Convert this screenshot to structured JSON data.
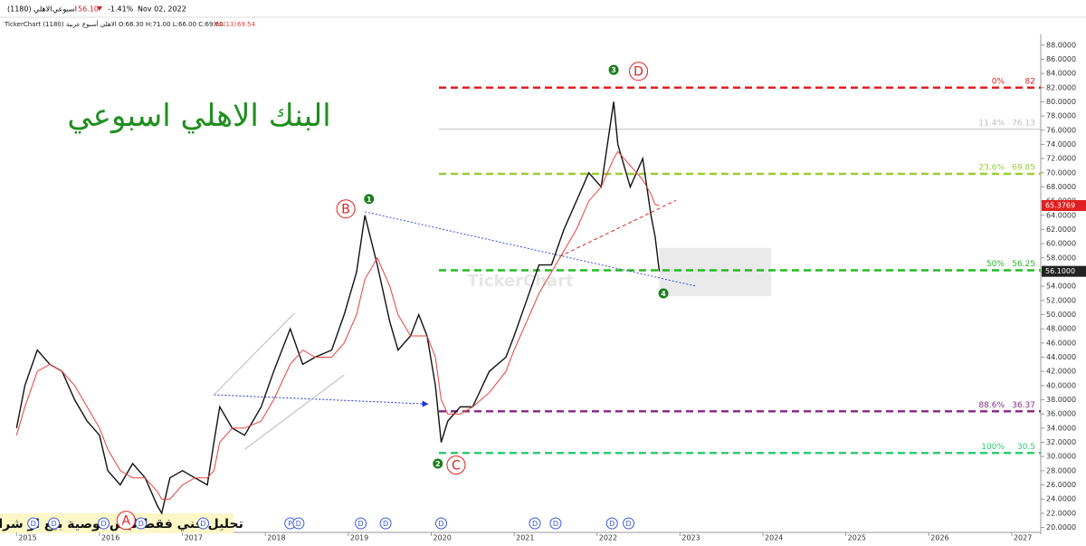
{
  "header": {
    "symbol": "الاهلي (1180)",
    "period": "اسبوعي",
    "price": "56.10",
    "change": "-1.41%",
    "date": "Nov 02, 2022",
    "ohlc": "TickerChart الاهلي أسبوع عربية (1180) O:66.30 H:71.00 L:66.00 C:69.60",
    "ma_name": "MA(13)",
    "ma_value": "69.54"
  },
  "chart_data": {
    "type": "line",
    "title": "البنك الاهلي اسبوعي",
    "footer": "تحليل فني فقط ليس توصية بيع او شراء",
    "watermark": "TickerChart",
    "x": [
      2015.0,
      2015.1,
      2015.25,
      2015.4,
      2015.55,
      2015.7,
      2015.85,
      2016.0,
      2016.1,
      2016.25,
      2016.4,
      2016.55,
      2016.7,
      2016.75,
      2016.85,
      2017.0,
      2017.15,
      2017.3,
      2017.38,
      2017.45,
      2017.6,
      2017.75,
      2017.95,
      2018.1,
      2018.3,
      2018.45,
      2018.6,
      2018.8,
      2018.95,
      2019.1,
      2019.2,
      2019.35,
      2019.5,
      2019.6,
      2019.75,
      2019.85,
      2019.95,
      2020.05,
      2020.12,
      2020.2,
      2020.35,
      2020.5,
      2020.7,
      2020.9,
      2021.0,
      2021.15,
      2021.3,
      2021.45,
      2021.6,
      2021.75,
      2021.9,
      2022.05,
      2022.2,
      2022.25,
      2022.4,
      2022.55,
      2022.65,
      2022.7,
      2022.75
    ],
    "series": [
      {
        "name": "الاهلي",
        "color": "#111111",
        "values": [
          34,
          40,
          45,
          43,
          42,
          38,
          35,
          33,
          28,
          26,
          29,
          27,
          23,
          22,
          27,
          28,
          27,
          26,
          32,
          37,
          34,
          33,
          37,
          42,
          48,
          43,
          44,
          45,
          50,
          56,
          64,
          57,
          49,
          45,
          47,
          50,
          47,
          40,
          32,
          35,
          37,
          37,
          42,
          44,
          47,
          52,
          57,
          57,
          62,
          66,
          70,
          68,
          80,
          74,
          68,
          72,
          64,
          61,
          56.1
        ]
      },
      {
        "name": "MA(13)",
        "color": "#e8413c",
        "values": [
          33,
          37,
          42,
          43,
          42,
          40,
          37,
          34,
          31,
          28,
          27,
          27,
          25,
          24,
          24,
          26,
          27,
          27,
          28,
          32,
          34,
          34,
          35,
          38,
          43,
          45,
          44,
          44,
          46,
          50,
          55,
          58,
          54,
          50,
          47,
          47,
          47,
          44,
          38,
          36,
          36,
          37,
          39,
          42,
          45,
          49,
          53,
          56,
          59,
          62,
          66,
          68,
          72,
          73,
          71,
          69,
          67,
          65.5,
          65.3769
        ]
      }
    ],
    "last_price": {
      "value": 56.1,
      "label": "56.1000"
    },
    "last_ma": 65.3769,
    "xlim": [
      2014.8,
      2027.35
    ],
    "xticks": [
      2015,
      2016,
      2017,
      2018,
      2019,
      2020,
      2021,
      2022,
      2023,
      2024,
      2025,
      2026,
      2027
    ],
    "ylim": [
      19.3,
      89.5
    ],
    "yticks": [
      {
        "value": 20,
        "label": "20.0000"
      },
      {
        "value": 22,
        "label": "22.0000"
      },
      {
        "value": 24,
        "label": "24.0000"
      },
      {
        "value": 26,
        "label": "26.0000"
      },
      {
        "value": 28,
        "label": "28.0000"
      },
      {
        "value": 30,
        "label": "30.0000"
      },
      {
        "value": 32,
        "label": "32.0000"
      },
      {
        "value": 34,
        "label": "34.0000"
      },
      {
        "value": 36,
        "label": "36.0000"
      },
      {
        "value": 38,
        "label": "38.0000"
      },
      {
        "value": 40,
        "label": "40.0000"
      },
      {
        "value": 42,
        "label": "42.0000"
      },
      {
        "value": 44,
        "label": "44.0000"
      },
      {
        "value": 46,
        "label": "46.0000"
      },
      {
        "value": 48,
        "label": "48.0000"
      },
      {
        "value": 50,
        "label": "50.0000"
      },
      {
        "value": 52,
        "label": "52.0000"
      },
      {
        "value": 54,
        "label": "54.0000"
      },
      {
        "value": 56,
        "label": "56.0000"
      },
      {
        "value": 58,
        "label": "58.0000"
      },
      {
        "value": 60,
        "label": "60.0000"
      },
      {
        "value": 62,
        "label": "62.0000"
      },
      {
        "value": 64,
        "label": "64.0000"
      },
      {
        "value": 66,
        "label": "66.0000"
      },
      {
        "value": 68,
        "label": "68.0000"
      },
      {
        "value": 70,
        "label": "70.0000"
      },
      {
        "value": 72,
        "label": "72.0000"
      },
      {
        "value": 74,
        "label": "74.0000"
      },
      {
        "value": 76,
        "label": "76.0000"
      },
      {
        "value": 78,
        "label": "78.0000"
      },
      {
        "value": 80,
        "label": "80.0000"
      },
      {
        "value": 82,
        "label": "82.0000"
      },
      {
        "value": 84,
        "label": "84.0000"
      },
      {
        "value": 86,
        "label": "86.0000"
      },
      {
        "value": 88,
        "label": "88.0000"
      }
    ],
    "fib_levels": [
      {
        "label": "0%",
        "value": 82,
        "color": "#e02020",
        "dashed": true
      },
      {
        "label": "11.4%",
        "value": 76.13,
        "color": "#c0c0c0",
        "dashed": false
      },
      {
        "label": "23.6%",
        "value": 69.85,
        "color": "#9acd32",
        "dashed": true
      },
      {
        "label": "50%",
        "value": 56.25,
        "color": "#22bb22",
        "dashed": true
      },
      {
        "label": "88.6%",
        "value": 36.37,
        "color": "#8b2e8b",
        "dashed": true
      },
      {
        "label": "100%",
        "value": 30.5,
        "color": "#2ecc71",
        "dashed": true
      }
    ],
    "waves": [
      {
        "label": "A",
        "x": 2016.32,
        "y": 21.0,
        "style": "red"
      },
      {
        "label": "B",
        "x": 2018.97,
        "y": 64.9,
        "style": "red"
      },
      {
        "label": "C",
        "x": 2020.3,
        "y": 28.8,
        "style": "red"
      },
      {
        "label": "D",
        "x": 2022.5,
        "y": 84.3,
        "style": "red"
      },
      {
        "label": "1",
        "x": 2019.25,
        "y": 66.3,
        "style": "green"
      },
      {
        "label": "2",
        "x": 2020.08,
        "y": 29.0,
        "style": "green"
      },
      {
        "label": "3",
        "x": 2022.2,
        "y": 84.5,
        "style": "green"
      },
      {
        "label": "4",
        "x": 2022.8,
        "y": 53.0,
        "style": "green"
      }
    ],
    "trendlines": [
      {
        "x": [
          2019.2,
          2023.2
        ],
        "y": [
          64.5,
          54.0
        ],
        "color": "#3a4ee0",
        "dash": "2,2",
        "arrow": false
      },
      {
        "x": [
          2017.38,
          2019.96
        ],
        "y": [
          38.7,
          37.4
        ],
        "color": "#1a30e0",
        "dash": "2,2",
        "arrow": true
      },
      {
        "x": [
          2021.55,
          2022.95
        ],
        "y": [
          58.2,
          66.1
        ],
        "color": "#e02020",
        "dash": "4,3",
        "arrow": false
      },
      {
        "x": [
          2017.38,
          2018.35
        ],
        "y": [
          38.7,
          50.2
        ],
        "color": "#bbbbbb",
        "dash": "",
        "arrow": false
      },
      {
        "x": [
          2017.75,
          2018.95
        ],
        "y": [
          31.0,
          41.5
        ],
        "color": "#bbbbbb",
        "dash": "",
        "arrow": false
      }
    ],
    "zone": {
      "x": [
        2022.75,
        2024.1
      ],
      "y": [
        52.6,
        59.4
      ]
    },
    "events": [
      {
        "x": 2015.2,
        "label": "D"
      },
      {
        "x": 2015.45,
        "label": "D"
      },
      {
        "x": 2016.05,
        "label": "D"
      },
      {
        "x": 2016.5,
        "label": "D"
      },
      {
        "x": 2017.25,
        "label": "D"
      },
      {
        "x": 2018.3,
        "label": "P"
      },
      {
        "x": 2018.4,
        "label": "D"
      },
      {
        "x": 2019.15,
        "label": "D"
      },
      {
        "x": 2019.45,
        "label": "D"
      },
      {
        "x": 2020.12,
        "label": "D"
      },
      {
        "x": 2021.25,
        "label": "D"
      },
      {
        "x": 2021.5,
        "label": "D"
      },
      {
        "x": 2022.18,
        "label": "D"
      },
      {
        "x": 2022.38,
        "label": "D"
      }
    ]
  }
}
